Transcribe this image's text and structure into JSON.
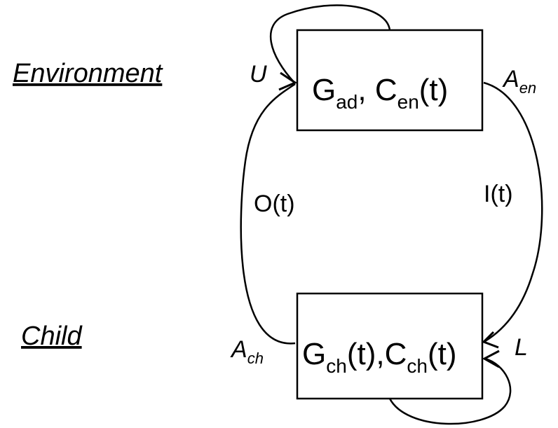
{
  "rows": {
    "environment": "Environment",
    "child": "Child"
  },
  "env_box": {
    "g_main": "G",
    "g_sub": "ad",
    "sep": ", ",
    "c_main": "C",
    "c_sub": "en",
    "c_arg": "(t)"
  },
  "child_box": {
    "g_main": "G",
    "g_sub": "ch",
    "g_arg": "(t),",
    "c_main": "C",
    "c_sub": "ch",
    "c_arg": "(t)"
  },
  "edges": {
    "u_label": "U",
    "a_en_main": "A",
    "a_en_sub": "en",
    "i_label": "I(t)",
    "o_label": "O(t)",
    "a_ch_main": "A",
    "a_ch_sub": "ch",
    "l_label": "L"
  },
  "colors": {
    "stroke": "#000000",
    "background": "#ffffff"
  }
}
